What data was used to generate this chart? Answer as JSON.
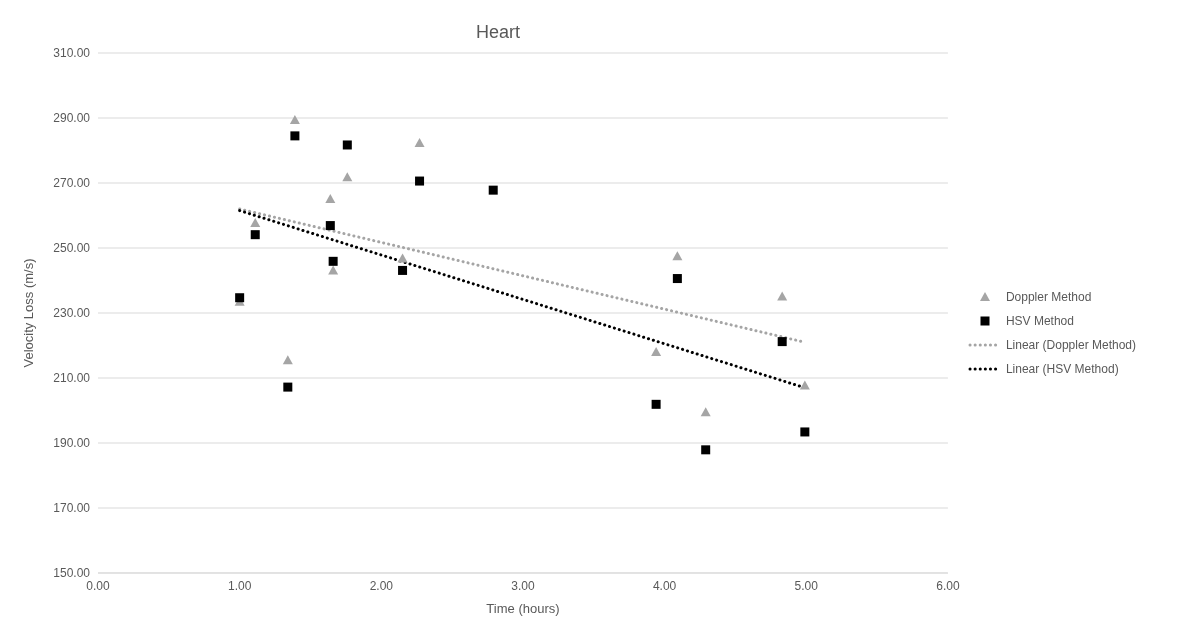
{
  "chart_data": {
    "type": "scatter",
    "title": "Heart",
    "xlabel": "Time (hours)",
    "ylabel": "Velocity Loss (m/s)",
    "xlim": [
      0,
      6
    ],
    "xticks": [
      {
        "value": 0,
        "label": "0.00"
      },
      {
        "value": 1,
        "label": "1.00"
      },
      {
        "value": 2,
        "label": "2.00"
      },
      {
        "value": 3,
        "label": "3.00"
      },
      {
        "value": 4,
        "label": "4.00"
      },
      {
        "value": 5,
        "label": "5.00"
      },
      {
        "value": 6,
        "label": "6.00"
      }
    ],
    "ylim": [
      150,
      310
    ],
    "yticks": [
      {
        "value": 150,
        "label": "150.00"
      },
      {
        "value": 170,
        "label": "170.00"
      },
      {
        "value": 190,
        "label": "190.00"
      },
      {
        "value": 210,
        "label": "210.00"
      },
      {
        "value": 230,
        "label": "230.00"
      },
      {
        "value": 250,
        "label": "250.00"
      },
      {
        "value": 270,
        "label": "270.00"
      },
      {
        "value": 290,
        "label": "290.00"
      },
      {
        "value": 310,
        "label": "310.00"
      }
    ],
    "grid": "y",
    "legend": "right",
    "series": [
      {
        "name": "Doppler Method",
        "marker": "triangle",
        "color": "#a5a5a5",
        "x": [
          1.0,
          1.11,
          1.34,
          1.39,
          1.64,
          1.66,
          1.76,
          2.15,
          2.27,
          2.79,
          3.94,
          4.09,
          4.29,
          4.83,
          4.99
        ],
        "values": [
          233.5,
          257.7,
          215.5,
          289.4,
          265.1,
          243.1,
          271.8,
          246.8,
          282.3,
          null,
          218,
          247.5,
          199.5,
          235.1,
          207.7
        ]
      },
      {
        "name": "HSV Method",
        "marker": "square",
        "color": "#000000",
        "x": [
          1.0,
          1.11,
          1.34,
          1.39,
          1.64,
          1.66,
          1.76,
          2.15,
          2.27,
          2.79,
          3.94,
          4.09,
          4.29,
          4.83,
          4.99
        ],
        "values": [
          234.7,
          254.1,
          207.2,
          284.5,
          256.9,
          245.9,
          281.7,
          243.1,
          270.6,
          267.8,
          201.9,
          240.6,
          187.9,
          221.2,
          193.4
        ]
      },
      {
        "name": "Linear (Doppler Method)",
        "type": "line",
        "marker": "none",
        "line_style": "dotted",
        "color": "#a5a5a5",
        "x": [
          1.0,
          4.99
        ],
        "values": [
          262,
          221
        ]
      },
      {
        "name": "Linear (HSV Method)",
        "type": "line",
        "marker": "none",
        "line_style": "dotted",
        "color": "#000000",
        "x": [
          1.0,
          4.99
        ],
        "values": [
          261.5,
          207
        ]
      }
    ]
  }
}
